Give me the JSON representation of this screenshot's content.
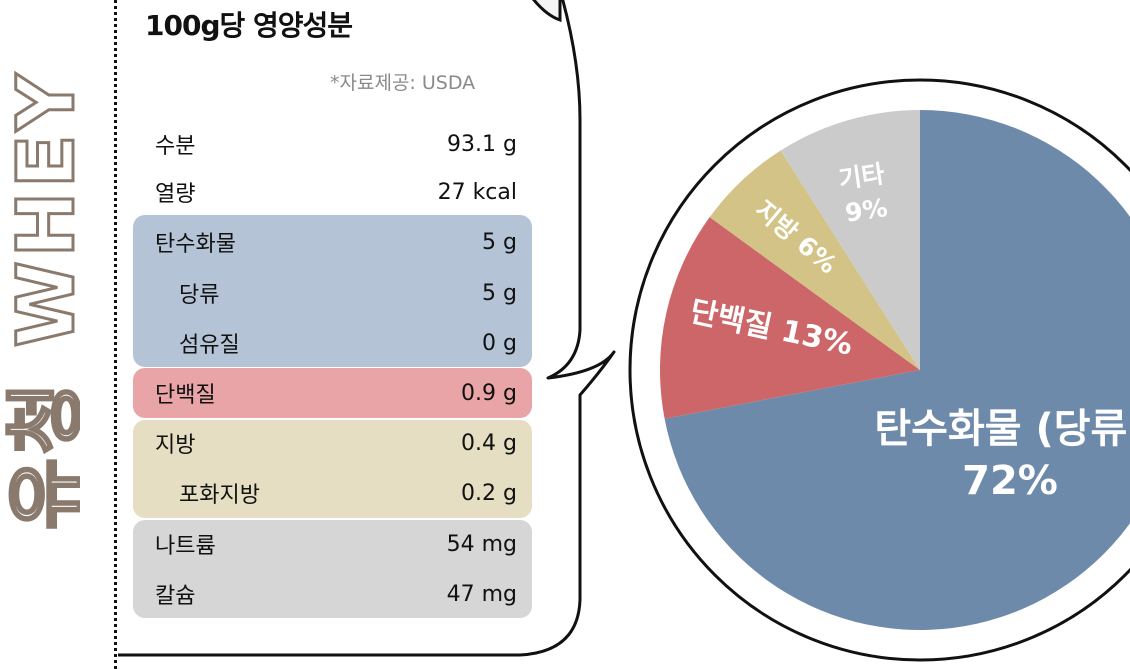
{
  "side_title": "유청 WHEY",
  "nutrition": {
    "title": "100g당 영양성분",
    "source": "*자료제공: USDA",
    "rows": [
      {
        "name": "수분",
        "value": "93.1 g"
      },
      {
        "name": "열량",
        "value": "27 kcal"
      },
      {
        "name": "탄수화물",
        "value": "5 g"
      },
      {
        "name": "당류",
        "value": "5 g"
      },
      {
        "name": "섬유질",
        "value": "0 g"
      },
      {
        "name": "단백질",
        "value": "0.9 g"
      },
      {
        "name": "지방",
        "value": "0.4 g"
      },
      {
        "name": "포화지방",
        "value": "0.2 g"
      },
      {
        "name": "나트륨",
        "value": "54 mg"
      },
      {
        "name": "칼슘",
        "value": "47 mg"
      }
    ],
    "group_colors": {
      "carbs": "#b4c4d6",
      "protein": "#e8a4a6",
      "fat": "#e5dec2",
      "other": "#d6d6d6"
    }
  },
  "chart_data": {
    "type": "pie",
    "slices": [
      {
        "label": "탄수화물 (당류)",
        "value_text": "72%",
        "value": 72,
        "color": "#6e8aab"
      },
      {
        "label": "단백질",
        "value_text": "13%",
        "value": 13,
        "color": "#cd6668"
      },
      {
        "label": "지방",
        "value_text": "6%",
        "value": 6,
        "color": "#d3c386"
      },
      {
        "label": "기타",
        "value_text": "9%",
        "value": 9,
        "color": "#cbcbcb"
      }
    ]
  }
}
